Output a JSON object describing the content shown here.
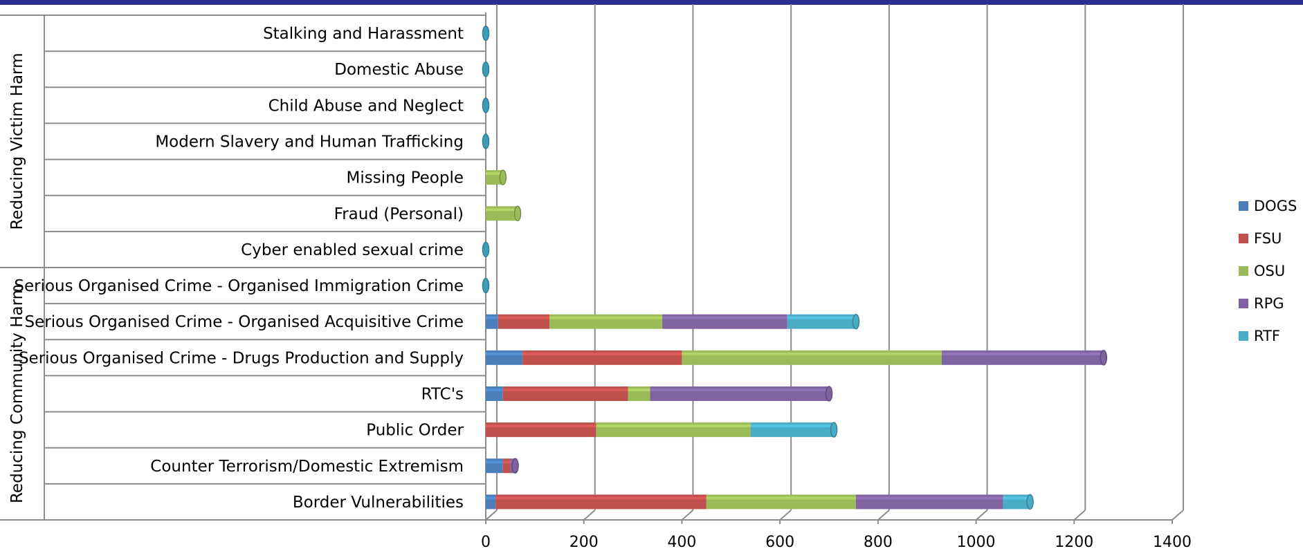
{
  "chart_data": {
    "type": "bar",
    "orientation": "horizontal",
    "stacked": true,
    "title": "",
    "xlabel": "",
    "ylabel": "",
    "xlim": [
      0,
      1400
    ],
    "ticks": [
      0,
      200,
      400,
      600,
      800,
      1000,
      1200,
      1400
    ],
    "grid": true,
    "legend_position": "right",
    "groups": [
      {
        "label": "Reducing Victim Harm",
        "categories": [
          "Stalking and Harassment",
          "Domestic Abuse",
          "Child Abuse and Neglect",
          "Modern Slavery and Human Trafficking",
          "Missing People",
          "Fraud (Personal)",
          "Cyber enabled sexual crime"
        ]
      },
      {
        "label": "Reducing Community Harm",
        "categories": [
          "Serious Organised Crime - Organised Immigration Crime",
          "Serious Organised Crime - Organised Acquisitive Crime",
          "Serious Organised Crime - Drugs Production and Supply",
          "RTC's",
          "Public Order",
          "Counter Terrorism/Domestic Extremism",
          "Border Vulnerabilities"
        ]
      }
    ],
    "categories": [
      "Stalking and Harassment",
      "Domestic Abuse",
      "Child Abuse and Neglect",
      "Modern Slavery and Human Trafficking",
      "Missing People",
      "Fraud (Personal)",
      "Cyber enabled sexual crime",
      "Serious Organised Crime - Organised Immigration Crime",
      "Serious Organised Crime - Organised Acquisitive Crime",
      "Serious Organised Crime - Drugs Production and Supply",
      "RTC's",
      "Public Order",
      "Counter Terrorism/Domestic Extremism",
      "Border Vulnerabilities"
    ],
    "series": [
      {
        "name": "DOGS",
        "color": "#4a7ebb",
        "values": [
          0,
          0,
          0,
          0,
          0,
          0,
          0,
          0,
          25,
          75,
          35,
          0,
          35,
          20
        ]
      },
      {
        "name": "FSU",
        "color": "#c0504d",
        "values": [
          0,
          0,
          0,
          0,
          0,
          0,
          0,
          0,
          105,
          325,
          255,
          225,
          15,
          430
        ]
      },
      {
        "name": "OSU",
        "color": "#9bbb59",
        "values": [
          0,
          0,
          0,
          0,
          35,
          65,
          0,
          0,
          230,
          530,
          45,
          315,
          0,
          305
        ]
      },
      {
        "name": "RPG",
        "color": "#8064a2",
        "values": [
          0,
          0,
          0,
          0,
          0,
          0,
          0,
          0,
          255,
          330,
          365,
          0,
          10,
          300
        ]
      },
      {
        "name": "RTF",
        "color": "#4bacc6",
        "values": [
          0,
          0,
          0,
          0,
          0,
          0,
          0,
          0,
          140,
          0,
          0,
          170,
          0,
          55
        ]
      }
    ]
  }
}
